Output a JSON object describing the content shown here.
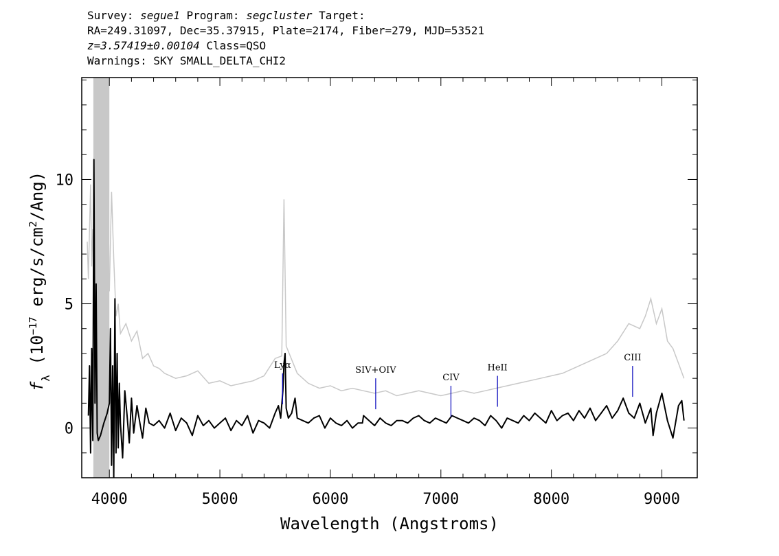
{
  "header": {
    "survey_label": "Survey: ",
    "survey": "segue1",
    "program_label": " Program: ",
    "program": "segcluster",
    "target_label": " Target:",
    "line2": "RA=249.31097, Dec=35.37915, Plate=2174, Fiber=279, MJD=53521",
    "redshift": "z=3.57419±0.00104",
    "class_text": " Class=QSO",
    "warnings": "Warnings: SKY SMALL_DELTA_CHI2"
  },
  "chart_data": {
    "type": "line",
    "xlabel": "Wavelength (Angstroms)",
    "ylabel_parts": [
      "f",
      "λ",
      " (10",
      "−17",
      " erg/s/cm",
      "2",
      "/Ang)"
    ],
    "xlim": [
      3750,
      9320
    ],
    "ylim": [
      -2,
      14.1
    ],
    "x_ticks": [
      4000,
      5000,
      6000,
      7000,
      8000,
      9000
    ],
    "y_ticks": [
      0,
      5,
      10
    ],
    "grid": false,
    "colors": {
      "flux": "#000000",
      "error": "#c8c8c8",
      "masked_band": "#c8c8c8",
      "line_marker": "#0000bb"
    },
    "masked_band": [
      3855,
      4000
    ],
    "series": [
      {
        "role": "flux",
        "x": [
          3810,
          3820,
          3830,
          3840,
          3850,
          3860,
          3870,
          3880,
          3890,
          3900,
          3920,
          3950,
          3980,
          4000,
          4010,
          4020,
          4030,
          4040,
          4050,
          4060,
          4070,
          4080,
          4090,
          4100,
          4120,
          4140,
          4160,
          4180,
          4200,
          4220,
          4250,
          4280,
          4300,
          4330,
          4360,
          4400,
          4450,
          4500,
          4550,
          4600,
          4650,
          4700,
          4750,
          4800,
          4850,
          4900,
          4950,
          5000,
          5050,
          5100,
          5150,
          5200,
          5250,
          5300,
          5350,
          5400,
          5450,
          5500,
          5530,
          5550,
          5570,
          5580,
          5590,
          5600,
          5620,
          5650,
          5680,
          5700,
          5750,
          5800,
          5850,
          5900,
          5950,
          6000,
          6050,
          6100,
          6150,
          6200,
          6250,
          6290,
          6300,
          6350,
          6400,
          6450,
          6500,
          6550,
          6600,
          6650,
          6700,
          6750,
          6800,
          6850,
          6900,
          6950,
          7000,
          7050,
          7100,
          7150,
          7200,
          7250,
          7300,
          7350,
          7400,
          7450,
          7500,
          7550,
          7600,
          7650,
          7700,
          7750,
          7800,
          7850,
          7900,
          7950,
          8000,
          8050,
          8100,
          8150,
          8200,
          8250,
          8300,
          8350,
          8400,
          8450,
          8500,
          8550,
          8600,
          8650,
          8700,
          8750,
          8800,
          8850,
          8900,
          8920,
          8950,
          9000,
          9050,
          9100,
          9150,
          9180,
          9200
        ],
        "y": [
          0.5,
          2.5,
          -1.0,
          3.2,
          -0.5,
          10.8,
          1.0,
          5.8,
          -0.2,
          -0.5,
          -0.3,
          0.2,
          0.6,
          1.0,
          4.0,
          -1.5,
          2.5,
          -2.0,
          5.2,
          -1.0,
          3.0,
          -0.8,
          1.8,
          0.2,
          -1.2,
          1.5,
          0.5,
          -0.6,
          1.2,
          -0.2,
          0.9,
          0.1,
          -0.4,
          0.8,
          0.2,
          0.1,
          0.3,
          0.0,
          0.6,
          -0.1,
          0.4,
          0.2,
          -0.3,
          0.5,
          0.1,
          0.3,
          0.0,
          0.2,
          0.4,
          -0.1,
          0.3,
          0.1,
          0.5,
          -0.2,
          0.3,
          0.2,
          0.0,
          0.6,
          0.9,
          0.4,
          1.5,
          2.6,
          3.0,
          0.8,
          0.4,
          0.6,
          1.2,
          0.4,
          0.3,
          0.2,
          0.4,
          0.5,
          0.0,
          0.4,
          0.2,
          0.1,
          0.3,
          0.0,
          0.2,
          0.2,
          0.5,
          0.3,
          0.1,
          0.4,
          0.2,
          0.1,
          0.3,
          0.3,
          0.2,
          0.4,
          0.5,
          0.3,
          0.2,
          0.4,
          0.3,
          0.2,
          0.5,
          0.4,
          0.3,
          0.2,
          0.4,
          0.3,
          0.1,
          0.5,
          0.3,
          0.0,
          0.4,
          0.3,
          0.2,
          0.5,
          0.3,
          0.6,
          0.4,
          0.2,
          0.7,
          0.3,
          0.5,
          0.6,
          0.3,
          0.7,
          0.4,
          0.8,
          0.3,
          0.6,
          0.9,
          0.4,
          0.7,
          1.2,
          0.6,
          0.4,
          1.0,
          0.2,
          0.8,
          -0.3,
          0.6,
          1.4,
          0.3,
          -0.4,
          0.9,
          1.1,
          0.3
        ]
      },
      {
        "role": "error",
        "x": [
          3800,
          3810,
          3820,
          3830,
          3840,
          3850,
          4000,
          4020,
          4040,
          4060,
          4080,
          4100,
          4150,
          4200,
          4250,
          4300,
          4350,
          4400,
          4450,
          4500,
          4600,
          4700,
          4800,
          4900,
          5000,
          5100,
          5200,
          5300,
          5400,
          5500,
          5560,
          5580,
          5600,
          5700,
          5800,
          5900,
          6000,
          6100,
          6200,
          6300,
          6400,
          6500,
          6600,
          6700,
          6800,
          6900,
          7000,
          7100,
          7200,
          7300,
          7400,
          7500,
          7600,
          7700,
          7800,
          7900,
          8000,
          8100,
          8200,
          8300,
          8400,
          8500,
          8600,
          8700,
          8800,
          8850,
          8900,
          8950,
          9000,
          9050,
          9100,
          9150,
          9200
        ],
        "y": [
          7.5,
          6.0,
          8.0,
          9.8,
          6.5,
          8.0,
          5.5,
          9.5,
          6.8,
          4.5,
          5.0,
          3.8,
          4.2,
          3.5,
          3.9,
          2.8,
          3.0,
          2.5,
          2.4,
          2.2,
          2.0,
          2.1,
          2.3,
          1.8,
          1.9,
          1.7,
          1.8,
          1.9,
          2.1,
          2.8,
          2.9,
          9.2,
          3.3,
          2.2,
          1.8,
          1.6,
          1.7,
          1.5,
          1.6,
          1.5,
          1.4,
          1.5,
          1.3,
          1.4,
          1.5,
          1.4,
          1.3,
          1.4,
          1.5,
          1.4,
          1.5,
          1.6,
          1.7,
          1.8,
          1.9,
          2.0,
          2.1,
          2.2,
          2.4,
          2.6,
          2.8,
          3.0,
          3.5,
          4.2,
          4.0,
          4.5,
          5.2,
          4.2,
          4.8,
          3.5,
          3.2,
          2.6,
          2.0
        ]
      }
    ],
    "lines": [
      {
        "label": "Lyα",
        "x": 5567,
        "y_top": 2.2
      },
      {
        "label": "SIV+OIV",
        "x": 6410,
        "y_top": 2.0
      },
      {
        "label": "CIV",
        "x": 7091,
        "y_top": 1.7
      },
      {
        "label": "HeII",
        "x": 7512,
        "y_top": 2.1
      },
      {
        "label": "CIII",
        "x": 8735,
        "y_top": 2.5
      }
    ]
  }
}
